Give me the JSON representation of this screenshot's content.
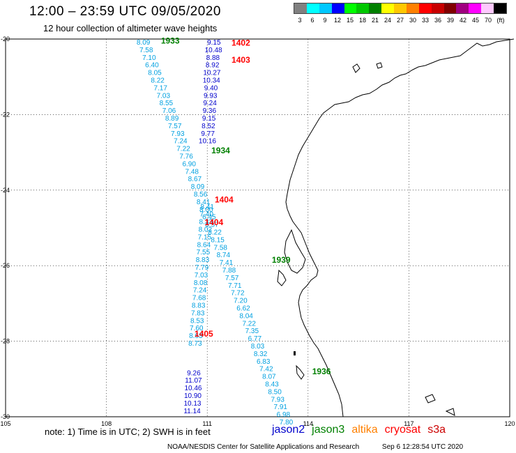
{
  "header": {
    "title": "12:00 – 23:59 UTC 09/05/2020",
    "subtitle": "12 hour collection of altimeter wave heights"
  },
  "legend": {
    "unit": "(ft)",
    "bins": [
      {
        "label": "3",
        "color": "#808080"
      },
      {
        "label": "6",
        "color": "#00ffff"
      },
      {
        "label": "9",
        "color": "#00c8ff"
      },
      {
        "label": "12",
        "color": "#0000ff"
      },
      {
        "label": "15",
        "color": "#00ff00"
      },
      {
        "label": "18",
        "color": "#00c800"
      },
      {
        "label": "21",
        "color": "#008000"
      },
      {
        "label": "24",
        "color": "#ffff00"
      },
      {
        "label": "27",
        "color": "#ffc800"
      },
      {
        "label": "30",
        "color": "#ff8000"
      },
      {
        "label": "33",
        "color": "#ff0000"
      },
      {
        "label": "36",
        "color": "#c80000"
      },
      {
        "label": "39",
        "color": "#800000"
      },
      {
        "label": "42",
        "color": "#a00080"
      },
      {
        "label": "45",
        "color": "#ff00ff"
      },
      {
        "label": "70",
        "color": "#ffc8ff"
      },
      {
        "label": "",
        "color": "#000000"
      }
    ]
  },
  "map": {
    "lon_range": [
      105,
      120
    ],
    "lat_range": [
      -30,
      -20
    ],
    "lon_ticks": [
      "105",
      "108",
      "111",
      "114",
      "117",
      "120"
    ],
    "lat_ticks": [
      "-20",
      "-22",
      "-24",
      "-26",
      "-28",
      "-30"
    ],
    "colors": {
      "jason2": "#0000cc",
      "jason3": "#008000",
      "altika": "#ff8000",
      "cryosat": "#ff0000",
      "s3a": "#cc0000",
      "light_track": "#00a0e0",
      "coast": "#000000",
      "grid": "#000000"
    },
    "tracks": [
      {
        "name": "track-a",
        "color_key": "light_track",
        "lon_start": 109.1,
        "lat_start": -20.0,
        "lon_step": 0.085,
        "values": [
          "8.09",
          "7.58",
          "7.10",
          "6.40",
          "8.05",
          "8.22",
          "7.17",
          "7.03",
          "8.55",
          "7.06",
          "8.89",
          "7.57",
          "7.93",
          "7.24",
          "7.22",
          "7.76",
          "6.90",
          "7.48",
          "8.67",
          "8.09",
          "8.56",
          "8.41",
          "8.00",
          "6.45",
          "8.57",
          "8.22",
          "8.15",
          "7.58",
          "8.74",
          "7.41",
          "7.88",
          "7.57",
          "7.71",
          "7.72",
          "7.20",
          "6.62",
          "8.04",
          "7.22",
          "7.35",
          "6.77",
          "8.03",
          "8.32",
          "6.83",
          "7.42",
          "8.07",
          "8.43",
          "8.50",
          "7.93",
          "7.91",
          "6.98",
          "7.80"
        ]
      },
      {
        "name": "track-b",
        "color_key": "jason2",
        "lon_start": 111.2,
        "lat_start": -20.0,
        "lon_step": -0.015,
        "values": [
          "9.15",
          "10.48",
          "8.88",
          "8.92",
          "10.27",
          "10.34",
          "9.40",
          "9.93",
          "9.24",
          "9.36",
          "9.15",
          "8.52",
          "9.77",
          "10.16"
        ]
      },
      {
        "name": "track-c",
        "color_key": "light_track",
        "lon_start": 111.0,
        "lat_start": -24.35,
        "lon_step": -0.02,
        "values": [
          "8.41",
          "7.40",
          "8.33",
          "8.02",
          "7.15",
          "8.64",
          "7.55",
          "8.83",
          "7.79",
          "7.03",
          "8.08",
          "7.24",
          "7.68",
          "8.83",
          "7.83",
          "8.53",
          "7.60",
          "8.63",
          "8.73"
        ]
      },
      {
        "name": "track-d",
        "color_key": "jason2",
        "lon_start": 110.6,
        "lat_start": -28.75,
        "lon_step": -0.01,
        "values": [
          "9.26",
          "11.07",
          "10.46",
          "10.90",
          "10.13",
          "11.14"
        ]
      }
    ],
    "time_labels": [
      {
        "text": "1933",
        "color_key": "jason3",
        "lon": 109.9,
        "lat": -20.05
      },
      {
        "text": "1402",
        "color_key": "cryosat",
        "lon": 112.0,
        "lat": -20.1
      },
      {
        "text": "1403",
        "color_key": "cryosat",
        "lon": 112.0,
        "lat": -20.55
      },
      {
        "text": "1934",
        "color_key": "jason3",
        "lon": 111.4,
        "lat": -22.95
      },
      {
        "text": "1404",
        "color_key": "cryosat",
        "lon": 111.5,
        "lat": -24.25
      },
      {
        "text": "1404",
        "color_key": "cryosat",
        "lon": 111.2,
        "lat": -24.85
      },
      {
        "text": "1939",
        "color_key": "jason3",
        "lon": 113.2,
        "lat": -25.85
      },
      {
        "text": "1405",
        "color_key": "cryosat",
        "lon": 110.9,
        "lat": -27.8
      },
      {
        "text": "1936",
        "color_key": "jason3",
        "lon": 114.4,
        "lat": -28.8
      }
    ]
  },
  "footer": {
    "note": "note: 1) Time is in UTC; 2) SWH is in feet",
    "satellites": [
      {
        "name": "jason2",
        "color": "#0000cc"
      },
      {
        "name": "jason3",
        "color": "#008000"
      },
      {
        "name": "altika",
        "color": "#ff8000"
      },
      {
        "name": "cryosat",
        "color": "#ff0000"
      },
      {
        "name": "s3a",
        "color": "#cc0000"
      }
    ],
    "credit": "NOAA/NESDIS Center for Satellite Applications and Research",
    "timestamp": "Sep  6 12:28:54 UTC 2020"
  }
}
